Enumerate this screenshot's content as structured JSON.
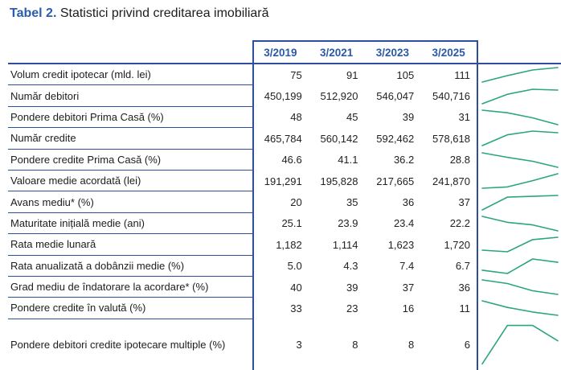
{
  "title": {
    "prefix": "Tabel 2.",
    "rest": "Statistici privind creditarea imobiliară"
  },
  "table": {
    "columns": [
      "3/2019",
      "3/2021",
      "3/2023",
      "3/2025"
    ],
    "rows": [
      {
        "label": "Volum credit ipotecar (mld. lei)",
        "values": [
          "75",
          "91",
          "105",
          "111"
        ]
      },
      {
        "label": "Număr debitori",
        "values": [
          "450,199",
          "512,920",
          "546,047",
          "540,716"
        ]
      },
      {
        "label": "Pondere debitori Prima Casă (%)",
        "values": [
          "48",
          "45",
          "39",
          "31"
        ]
      },
      {
        "label": "Număr credite",
        "values": [
          "465,784",
          "560,142",
          "592,462",
          "578,618"
        ]
      },
      {
        "label": "Pondere credite Prima Casă (%)",
        "values": [
          "46.6",
          "41.1",
          "36.2",
          "28.8"
        ]
      },
      {
        "label": "Valoare medie acordată (lei)",
        "values": [
          "191,291",
          "195,828",
          "217,665",
          "241,870"
        ]
      },
      {
        "label": "Avans mediu* (%)",
        "values": [
          "20",
          "35",
          "36",
          "37"
        ]
      },
      {
        "label": "Maturitate inițială medie (ani)",
        "values": [
          "25.1",
          "23.9",
          "23.4",
          "22.2"
        ]
      },
      {
        "label": "Rata medie lunară",
        "values": [
          "1,182",
          "1,114",
          "1,623",
          "1,720"
        ]
      },
      {
        "label": "Rata anualizată a dobânzii medie (%)",
        "values": [
          "5.0",
          "4.3",
          "7.4",
          "6.7"
        ]
      },
      {
        "label": "Grad mediu de îndatorare la acordare* (%)",
        "values": [
          "40",
          "39",
          "37",
          "36"
        ]
      },
      {
        "label": "Pondere credite în valută (%)",
        "values": [
          "33",
          "23",
          "16",
          "11"
        ]
      },
      {
        "label": "Pondere debitori credite ipotecare multiple (%)",
        "values": [
          "3",
          "8",
          "8",
          "6"
        ]
      }
    ]
  },
  "colors": {
    "rule_blue": "#2e4d9e",
    "header_text_blue": "#2b58a8",
    "title_blue": "#2a5db0",
    "body_text": "#1d1d1f",
    "sparkline_green": "#2aa67d"
  }
}
